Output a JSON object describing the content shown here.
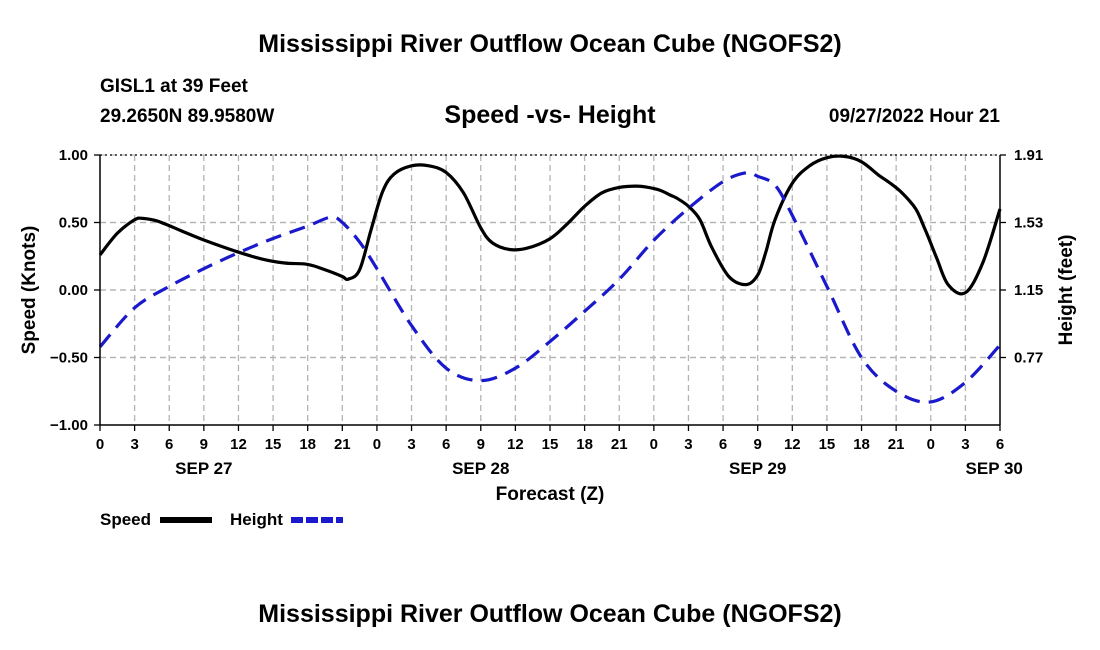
{
  "titles": {
    "main": "Mississippi River Outflow Ocean Cube (NGOFS2)",
    "bottom": "Mississippi River Outflow Ocean Cube (NGOFS2)",
    "station": "GISL1 at 39 Feet",
    "coords": "29.2650N  89.9580W",
    "subtitle": "Speed -vs- Height",
    "datetime": "09/27/2022 Hour 21"
  },
  "colors": {
    "speed": "#000000",
    "height": "#1a1acc",
    "grid": "#b4b4b4"
  },
  "chart_data": {
    "type": "line",
    "title": "Speed -vs- Height",
    "xlabel": "Forecast (Z)",
    "ylabel": "Speed (Knots)",
    "y2label": "Height (feet)",
    "x_unit": "hours since 2022-09-27 00Z",
    "xlim": [
      0,
      78
    ],
    "ylim": [
      -1.0,
      1.0
    ],
    "y2lim": [
      0.39,
      1.91
    ],
    "x_ticks": [
      0,
      3,
      6,
      9,
      12,
      15,
      18,
      21,
      24,
      27,
      30,
      33,
      36,
      39,
      42,
      45,
      48,
      51,
      54,
      57,
      60,
      63,
      66,
      69,
      72,
      75,
      78
    ],
    "x_tick_labels": [
      "0",
      "3",
      "6",
      "9",
      "12",
      "15",
      "18",
      "21",
      "0",
      "3",
      "6",
      "9",
      "12",
      "15",
      "18",
      "21",
      "0",
      "3",
      "6",
      "9",
      "12",
      "15",
      "18",
      "21",
      "0",
      "3",
      "6"
    ],
    "date_labels": [
      {
        "x": 9,
        "label": "SEP 27"
      },
      {
        "x": 33,
        "label": "SEP 28"
      },
      {
        "x": 57,
        "label": "SEP 29"
      },
      {
        "x": 77.5,
        "label": "SEP 30"
      }
    ],
    "y_ticks": [
      1.0,
      0.5,
      0.0,
      -0.5,
      -1.0
    ],
    "y_tick_labels": [
      "1.00",
      "0.50",
      "0.00",
      "−0.50",
      "−1.00"
    ],
    "y2_ticks": [
      1.91,
      1.53,
      1.15,
      0.77
    ],
    "y2_tick_labels": [
      "1.91",
      "1.53",
      "1.15",
      "0.77"
    ],
    "series": [
      {
        "name": "Speed",
        "axis": "left",
        "style": "solid",
        "x": [
          0,
          1.5,
          3,
          3.7,
          5,
          7,
          9,
          12,
          14,
          16,
          18,
          19.5,
          21,
          21.5,
          22.5,
          23.5,
          24.5,
          25.5,
          27,
          28.5,
          30,
          31.5,
          33,
          34,
          35.5,
          37,
          39,
          40.5,
          42,
          43.5,
          45,
          46.5,
          47.5,
          48.5,
          49.5,
          50,
          51,
          52,
          53,
          54.5,
          56,
          57,
          57.7,
          58.5,
          60,
          61.5,
          63,
          64.5,
          66,
          67.5,
          68.5,
          69.5,
          70.7,
          71.5,
          72.5,
          73.5,
          75,
          76.5,
          78
        ],
        "values": [
          0.26,
          0.42,
          0.52,
          0.53,
          0.51,
          0.44,
          0.37,
          0.28,
          0.23,
          0.2,
          0.19,
          0.15,
          0.1,
          0.08,
          0.15,
          0.45,
          0.73,
          0.86,
          0.92,
          0.92,
          0.87,
          0.72,
          0.46,
          0.35,
          0.3,
          0.31,
          0.38,
          0.49,
          0.62,
          0.72,
          0.76,
          0.77,
          0.76,
          0.74,
          0.7,
          0.68,
          0.62,
          0.52,
          0.32,
          0.1,
          0.04,
          0.11,
          0.28,
          0.52,
          0.79,
          0.92,
          0.98,
          0.99,
          0.95,
          0.85,
          0.79,
          0.72,
          0.6,
          0.45,
          0.24,
          0.04,
          -0.02,
          0.2,
          0.6
        ]
      },
      {
        "name": "Height",
        "axis": "right",
        "style": "dashed",
        "x": [
          0,
          3,
          6,
          9,
          12,
          15,
          18,
          20,
          21,
          22.5,
          24,
          27,
          30,
          33,
          36,
          39,
          42,
          45,
          48,
          51,
          54,
          56,
          57,
          58.5,
          60,
          63,
          66,
          69,
          72,
          75,
          78
        ],
        "values": [
          0.83,
          1.05,
          1.17,
          1.27,
          1.36,
          1.44,
          1.51,
          1.56,
          1.53,
          1.42,
          1.27,
          0.95,
          0.71,
          0.64,
          0.71,
          0.86,
          1.03,
          1.21,
          1.43,
          1.61,
          1.76,
          1.81,
          1.79,
          1.74,
          1.57,
          1.17,
          0.77,
          0.58,
          0.52,
          0.63,
          0.84
        ]
      }
    ],
    "legend": {
      "position": "bottom-left",
      "entries": [
        "Speed",
        "Height"
      ]
    }
  }
}
